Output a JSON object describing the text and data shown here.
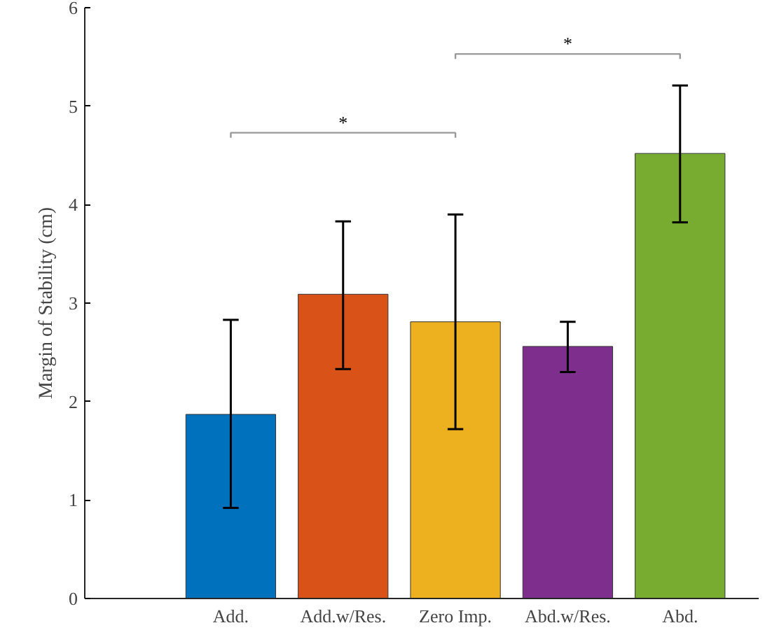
{
  "chart_data": {
    "type": "bar",
    "ylabel": "Margin of Stability (cm)",
    "categories": [
      "Add.",
      "Add.w/Res.",
      "Zero Imp.",
      "Abd.w/Res.",
      "Abd."
    ],
    "values": [
      1.87,
      3.09,
      2.81,
      2.56,
      4.52
    ],
    "colors": [
      "#0072bd",
      "#d95319",
      "#edb120",
      "#7e2f8e",
      "#77ac30"
    ],
    "errors": [
      [
        0.92,
        2.83
      ],
      [
        2.33,
        3.83
      ],
      [
        1.72,
        3.9
      ],
      [
        2.3,
        2.81
      ],
      [
        3.82,
        5.21
      ]
    ],
    "ylim": [
      0,
      6
    ],
    "yticks": [
      0,
      1,
      2,
      3,
      4,
      5,
      6
    ],
    "grid": false,
    "annotations": [
      "*",
      "*"
    ]
  }
}
